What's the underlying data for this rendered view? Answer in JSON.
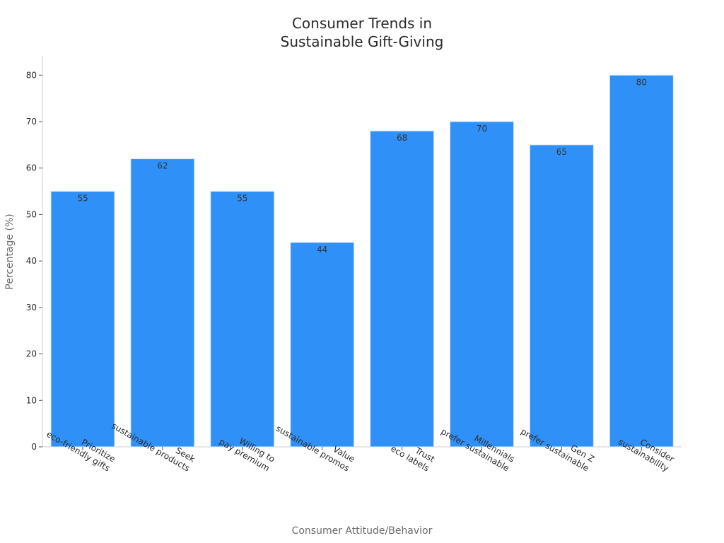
{
  "chart_data": {
    "type": "bar",
    "title_lines": [
      "Consumer Trends in",
      "Sustainable Gift-Giving"
    ],
    "xlabel": "Consumer Attitude/Behavior",
    "ylabel": "Percentage (%)",
    "ylim": [
      0,
      84
    ],
    "yticks": [
      0,
      10,
      20,
      30,
      40,
      50,
      60,
      70,
      80
    ],
    "categories": [
      [
        "Prioritize",
        "eco-friendly gifts"
      ],
      [
        "Seek",
        "sustainable products"
      ],
      [
        "Willing to",
        "pay premium"
      ],
      [
        "Value",
        "sustainable promos"
      ],
      [
        "Trust",
        "eco labels"
      ],
      [
        "Millennials",
        "prefer sustainable"
      ],
      [
        "Gen Z",
        "prefer sustainable"
      ],
      [
        "Consider",
        "sustainability"
      ]
    ],
    "values": [
      55,
      62,
      55,
      44,
      68,
      70,
      65,
      80
    ],
    "bar_color": "#2f91f7",
    "bar_edge_color": "#d9e6f2",
    "grid": false,
    "legend": "none"
  }
}
